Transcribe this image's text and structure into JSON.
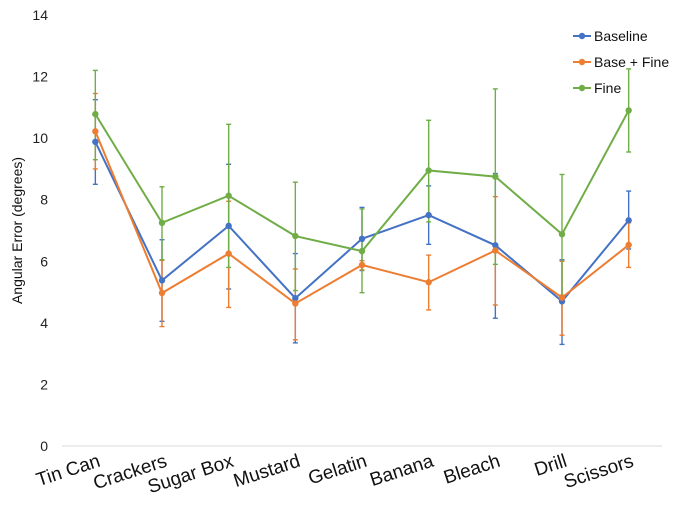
{
  "chart_data": {
    "type": "line",
    "title": "",
    "xlabel": "",
    "ylabel": "Angular Error (degrees)",
    "ylim": [
      0,
      14
    ],
    "yticks": [
      "0",
      "2",
      "4",
      "6",
      "8",
      "10",
      "12",
      "14"
    ],
    "categories": [
      "Tin Can",
      "Crackers",
      "Sugar Box",
      "Mustard",
      "Gelatin",
      "Banana",
      "Bleach",
      "Drill",
      "Scissors"
    ],
    "grid": false,
    "legend_position": "top-right",
    "series": [
      {
        "name": "Baseline",
        "color": "#4472C4",
        "values": [
          9.88,
          5.38,
          7.15,
          4.8,
          6.73,
          7.5,
          6.52,
          4.7,
          7.33
        ],
        "err_low": [
          8.5,
          4.05,
          5.1,
          3.35,
          5.7,
          6.55,
          4.15,
          3.3,
          6.4
        ],
        "err_high": [
          11.25,
          6.7,
          9.15,
          6.25,
          7.75,
          8.45,
          8.85,
          6.05,
          8.28
        ]
      },
      {
        "name": "Base + Fine",
        "color": "#ED7D31",
        "values": [
          10.22,
          4.97,
          6.25,
          4.63,
          5.88,
          5.32,
          6.35,
          4.82,
          6.53
        ],
        "err_low": [
          9.0,
          3.88,
          4.5,
          3.45,
          5.72,
          4.42,
          4.58,
          3.6,
          5.8
        ],
        "err_high": [
          11.45,
          6.03,
          7.95,
          5.75,
          6.02,
          6.2,
          8.1,
          6.0,
          7.25
        ]
      },
      {
        "name": "Fine",
        "color": "#70AD47",
        "values": [
          10.78,
          7.25,
          8.13,
          6.82,
          6.33,
          8.95,
          8.75,
          6.88,
          10.9
        ],
        "err_low": [
          9.3,
          6.05,
          5.8,
          5.05,
          4.98,
          7.28,
          5.9,
          4.9,
          9.55
        ],
        "err_high": [
          12.2,
          8.42,
          10.45,
          8.57,
          7.7,
          10.58,
          11.6,
          8.82,
          12.25
        ]
      }
    ]
  }
}
